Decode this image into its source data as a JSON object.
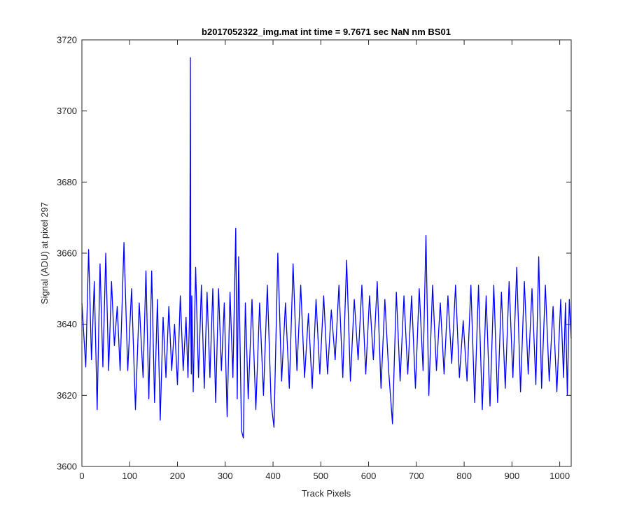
{
  "chart_data": {
    "type": "line",
    "title": "b2017052322_img.mat int time = 9.7671 sec  NaN nm BS01",
    "xlabel": "Track Pixels",
    "ylabel": "Signal (ADU) at pixel 297",
    "xlim": [
      0,
      1024
    ],
    "ylim": [
      3600,
      3720
    ],
    "xticks": [
      0,
      100,
      200,
      300,
      400,
      500,
      600,
      700,
      800,
      900,
      1000
    ],
    "yticks": [
      3600,
      3620,
      3640,
      3660,
      3680,
      3700,
      3720
    ],
    "grid": false,
    "legend": "none",
    "line_color": "#0000ff",
    "series": [
      {
        "x": [
          0,
          8,
          14,
          20,
          26,
          32,
          38,
          44,
          50,
          56,
          62,
          68,
          74,
          80,
          88,
          96,
          104,
          112,
          120,
          128,
          134,
          140,
          146,
          152,
          158,
          164,
          170,
          176,
          182,
          188,
          194,
          200,
          206,
          212,
          218,
          222,
          225,
          226,
          227,
          228,
          229,
          230,
          233,
          238,
          244,
          250,
          256,
          262,
          268,
          274,
          280,
          286,
          292,
          298,
          304,
          310,
          316,
          322,
          325,
          328,
          334,
          338,
          342,
          348,
          356,
          364,
          372,
          380,
          388,
          396,
          402,
          410,
          418,
          426,
          434,
          442,
          450,
          458,
          466,
          474,
          482,
          490,
          498,
          506,
          514,
          522,
          530,
          538,
          546,
          554,
          562,
          570,
          578,
          586,
          594,
          602,
          610,
          618,
          626,
          634,
          642,
          650,
          658,
          666,
          674,
          682,
          690,
          698,
          706,
          714,
          720,
          726,
          734,
          742,
          750,
          758,
          766,
          774,
          782,
          790,
          798,
          806,
          814,
          822,
          830,
          838,
          846,
          854,
          862,
          870,
          878,
          886,
          894,
          902,
          910,
          918,
          926,
          934,
          942,
          950,
          956,
          962,
          970,
          978,
          986,
          994,
          1002,
          1008,
          1012,
          1016,
          1020,
          1024
        ],
        "y": [
          3646,
          3628,
          3661,
          3630,
          3652,
          3616,
          3657,
          3628,
          3660,
          3627,
          3652,
          3634,
          3645,
          3627,
          3663,
          3627,
          3650,
          3616,
          3646,
          3625,
          3655,
          3619,
          3655,
          3618,
          3647,
          3613,
          3642,
          3625,
          3645,
          3627,
          3640,
          3623,
          3648,
          3627,
          3642,
          3625,
          3641,
          3660,
          3715,
          3640,
          3626,
          3648,
          3621,
          3656,
          3625,
          3651,
          3622,
          3649,
          3625,
          3650,
          3618,
          3650,
          3627,
          3646,
          3614,
          3649,
          3625,
          3667,
          3619,
          3659,
          3610,
          3608,
          3646,
          3619,
          3647,
          3616,
          3646,
          3620,
          3651,
          3618,
          3611,
          3660,
          3624,
          3646,
          3622,
          3657,
          3627,
          3651,
          3625,
          3643,
          3622,
          3647,
          3626,
          3648,
          3626,
          3644,
          3630,
          3651,
          3625,
          3658,
          3624,
          3647,
          3630,
          3651,
          3626,
          3648,
          3630,
          3652,
          3622,
          3647,
          3627,
          3612,
          3649,
          3624,
          3648,
          3626,
          3648,
          3622,
          3650,
          3627,
          3665,
          3620,
          3651,
          3627,
          3646,
          3626,
          3648,
          3629,
          3651,
          3625,
          3641,
          3624,
          3651,
          3618,
          3651,
          3616,
          3648,
          3617,
          3651,
          3618,
          3649,
          3622,
          3652,
          3625,
          3656,
          3621,
          3652,
          3626,
          3650,
          3623,
          3659,
          3622,
          3651,
          3624,
          3645,
          3621,
          3647,
          3625,
          3646,
          3620,
          3647,
          3636
        ]
      }
    ]
  }
}
